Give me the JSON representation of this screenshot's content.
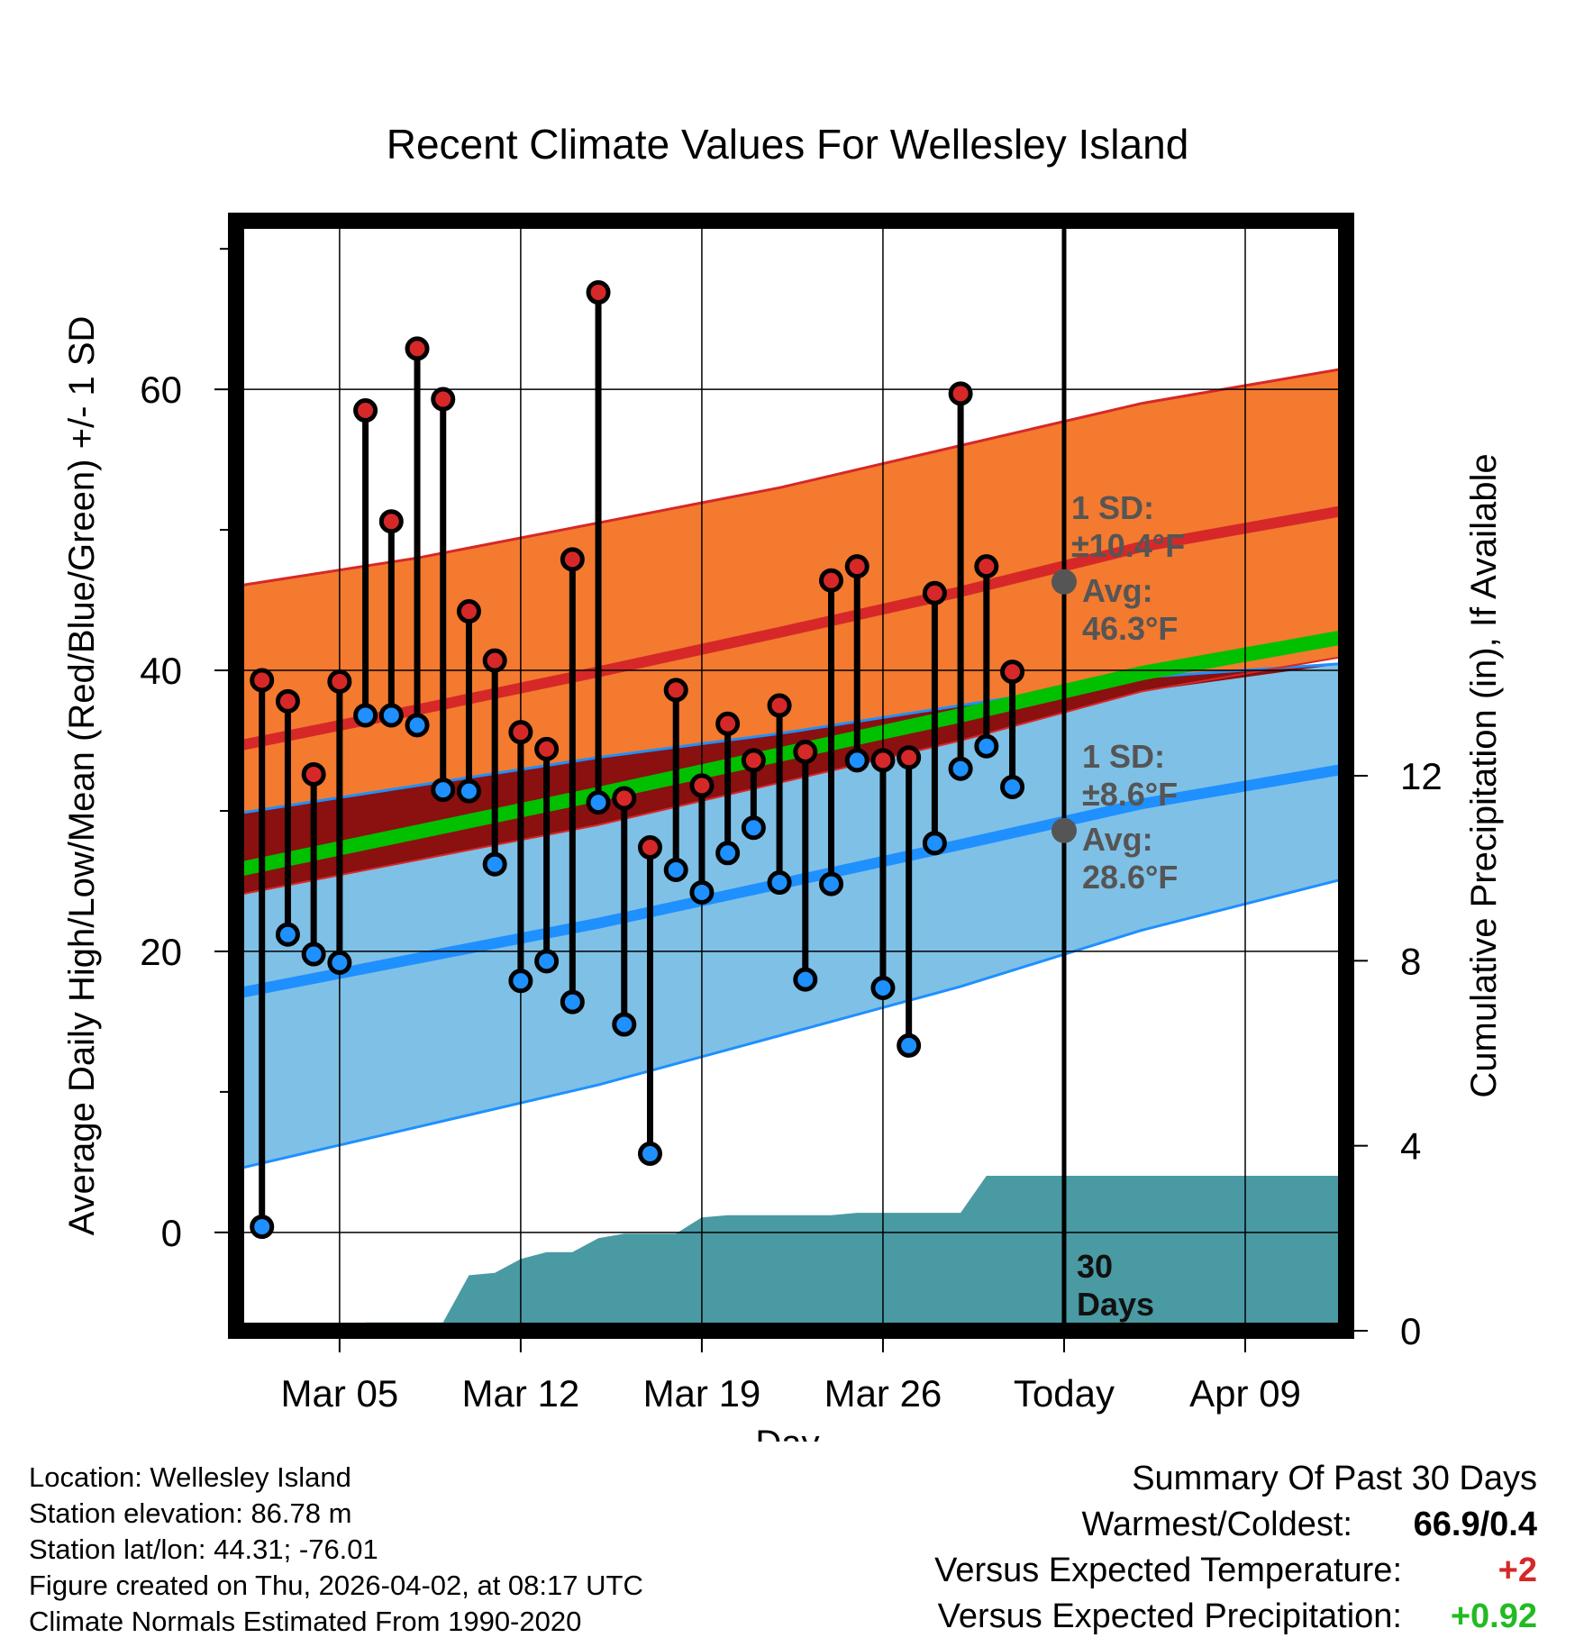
{
  "chart_data": {
    "type": "line",
    "title": "Recent Climate Values For Wellesley Island",
    "xlabel": "Day",
    "ylabel": "Average Daily High/Low/Mean (Red/Blue/Green) +/- 1 SD",
    "y2label": "Cumulative Precipitation (in), If Available",
    "ylim": [
      -7,
      72
    ],
    "y2lim": [
      0,
      24
    ],
    "xlim": [
      0.0,
      42.9
    ],
    "x_ticks": [
      {
        "x": 4,
        "label": "Mar 05"
      },
      {
        "x": 11,
        "label": "Mar 12"
      },
      {
        "x": 18,
        "label": "Mar 19"
      },
      {
        "x": 25,
        "label": "Mar 26"
      },
      {
        "x": 32,
        "label": "Today"
      },
      {
        "x": 39,
        "label": "Apr 09"
      }
    ],
    "y_ticks": [
      0,
      20,
      40,
      60
    ],
    "y_minor_ticks": [
      10,
      30,
      50,
      70
    ],
    "y2_ticks": [
      0,
      4,
      8,
      12
    ],
    "today_x": 32,
    "days": [
      1,
      2,
      3,
      4,
      5,
      6,
      7,
      8,
      9,
      10,
      11,
      12,
      13,
      14,
      15,
      16,
      17,
      18,
      19,
      20,
      21,
      22,
      23,
      24,
      25,
      26,
      27,
      28,
      29,
      30,
      31
    ],
    "highs": [
      39.3,
      37.8,
      32.6,
      39.2,
      58.5,
      50.6,
      62.9,
      59.3,
      44.2,
      40.7,
      35.6,
      34.4,
      47.9,
      66.9,
      30.9,
      27.4,
      38.6,
      31.8,
      36.2,
      33.6,
      37.5,
      34.2,
      46.4,
      47.4,
      33.6,
      33.8,
      45.5,
      59.7,
      47.4,
      39.9,
      null
    ],
    "lows": [
      0.4,
      21.2,
      19.8,
      19.2,
      36.8,
      36.8,
      36.1,
      31.5,
      31.4,
      26.2,
      17.9,
      19.3,
      16.4,
      30.6,
      14.8,
      5.6,
      25.8,
      24.2,
      27.0,
      28.8,
      24.9,
      18.0,
      24.8,
      33.6,
      17.4,
      13.3,
      27.7,
      33.0,
      34.6,
      31.7,
      null
    ],
    "normals": {
      "x": [
        0.0,
        7,
        14,
        21,
        28,
        35,
        42.9
      ],
      "high_avg": [
        34.6,
        37.2,
        39.9,
        42.7,
        45.6,
        48.8,
        51.4
      ],
      "high_upper": [
        46.0,
        48.0,
        50.5,
        53.0,
        56.0,
        59.0,
        61.5
      ],
      "high_lower": [
        24.0,
        26.5,
        29.0,
        32.0,
        35.0,
        38.5,
        41.0
      ],
      "mean_avg": [
        25.8,
        28.5,
        31.2,
        34.0,
        36.8,
        39.8,
        42.4
      ],
      "low_avg": [
        17.0,
        19.5,
        22.0,
        24.8,
        27.6,
        30.5,
        33.0
      ],
      "low_upper": [
        29.8,
        31.8,
        33.8,
        35.5,
        37.5,
        39.5,
        40.5
      ],
      "low_lower": [
        4.5,
        7.5,
        10.5,
        14.0,
        17.5,
        21.5,
        25.2
      ]
    },
    "precip": {
      "x": [
        4.5,
        5.0,
        8.0,
        9.0,
        10.0,
        11.0,
        12.0,
        13.0,
        14.0,
        15.0,
        16.0,
        17.0,
        18.0,
        19.0,
        20.0,
        21.0,
        22.0,
        23.0,
        24.0,
        25.0,
        26.0,
        27.0,
        28.0,
        29.0,
        30.0,
        31.0,
        32.0,
        33.0,
        42.9
      ],
      "cumulative": [
        0.0,
        0.18,
        0.18,
        1.2,
        1.25,
        1.55,
        1.7,
        1.7,
        2.0,
        2.1,
        2.1,
        2.1,
        2.45,
        2.5,
        2.5,
        2.5,
        2.5,
        2.5,
        2.55,
        2.55,
        2.55,
        2.55,
        2.55,
        3.35,
        3.35,
        3.35,
        3.35,
        3.35,
        3.35
      ],
      "label": "30 Days"
    },
    "annotations": {
      "high_sd": "1 SD:",
      "high_sd_val": "±10.4°F",
      "high_avg": "Avg:",
      "high_avg_val": "46.3°F",
      "low_sd": "1 SD:",
      "low_sd_val": "±8.6°F",
      "low_avg": "Avg:",
      "low_avg_val": "28.6°F",
      "today_high_avg": 46.3,
      "today_low_avg": 28.6
    },
    "colors": {
      "high_band": "#f37a2f",
      "high_line": "#d62828",
      "low_band": "#7fc0e6",
      "low_line": "#1e90ff",
      "overlap": "#8b1010",
      "mean_line": "#00c000",
      "precip_fill": "#4a9aa3",
      "high_dot": "#d62828",
      "low_dot": "#1e90ff",
      "today_dot": "#555555"
    }
  },
  "footer": {
    "location": "Location: Wellesley Island",
    "elevation": "Station elevation: 86.78 m",
    "latlon": "Station lat/lon: 44.31; -76.01",
    "created": "Figure created on Thu, 2026-04-02, at 08:17 UTC",
    "normals": "Climate Normals Estimated From 1990-2020"
  },
  "summary": {
    "heading": "Summary Of Past 30 Days",
    "warm_cold_label": "Warmest/Coldest:",
    "warm_cold_value": "66.9/0.4",
    "temp_label": "Versus Expected Temperature:",
    "temp_value": "+2",
    "temp_color": "#d62828",
    "precip_label": "Versus Expected Precipitation:",
    "precip_value": "+0.92",
    "precip_color": "#22bb22"
  }
}
